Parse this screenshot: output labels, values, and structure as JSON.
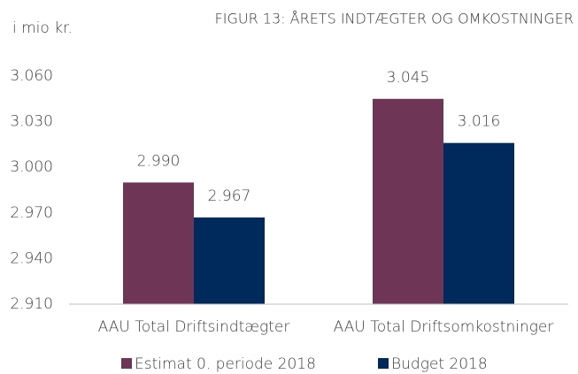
{
  "chart_data": {
    "type": "bar",
    "title": "FIGUR 13: ÅRETS INDTÆGTER OG OMKOSTNINGER",
    "y_label": "i mio kr.",
    "categories": [
      "AAU Total Driftsindtægter",
      "AAU Total Driftsomkostninger"
    ],
    "series": [
      {
        "name": "Estimat 0. periode 2018",
        "color": "#6e3557",
        "values": [
          2990,
          3045
        ],
        "value_labels": [
          "2.990",
          "3.045"
        ]
      },
      {
        "name": "Budget 2018",
        "color": "#002a5c",
        "values": [
          2967,
          3016
        ],
        "value_labels": [
          "2.967",
          "3.016"
        ]
      }
    ],
    "ylim": [
      2910,
      3060
    ],
    "yticks": [
      {
        "value": 2910,
        "label": "2.910"
      },
      {
        "value": 2940,
        "label": "2.940"
      },
      {
        "value": 2970,
        "label": "2.970"
      },
      {
        "value": 3000,
        "label": "3.000"
      },
      {
        "value": 3030,
        "label": "3.030"
      },
      {
        "value": 3060,
        "label": "3.060"
      }
    ],
    "grid": false
  }
}
